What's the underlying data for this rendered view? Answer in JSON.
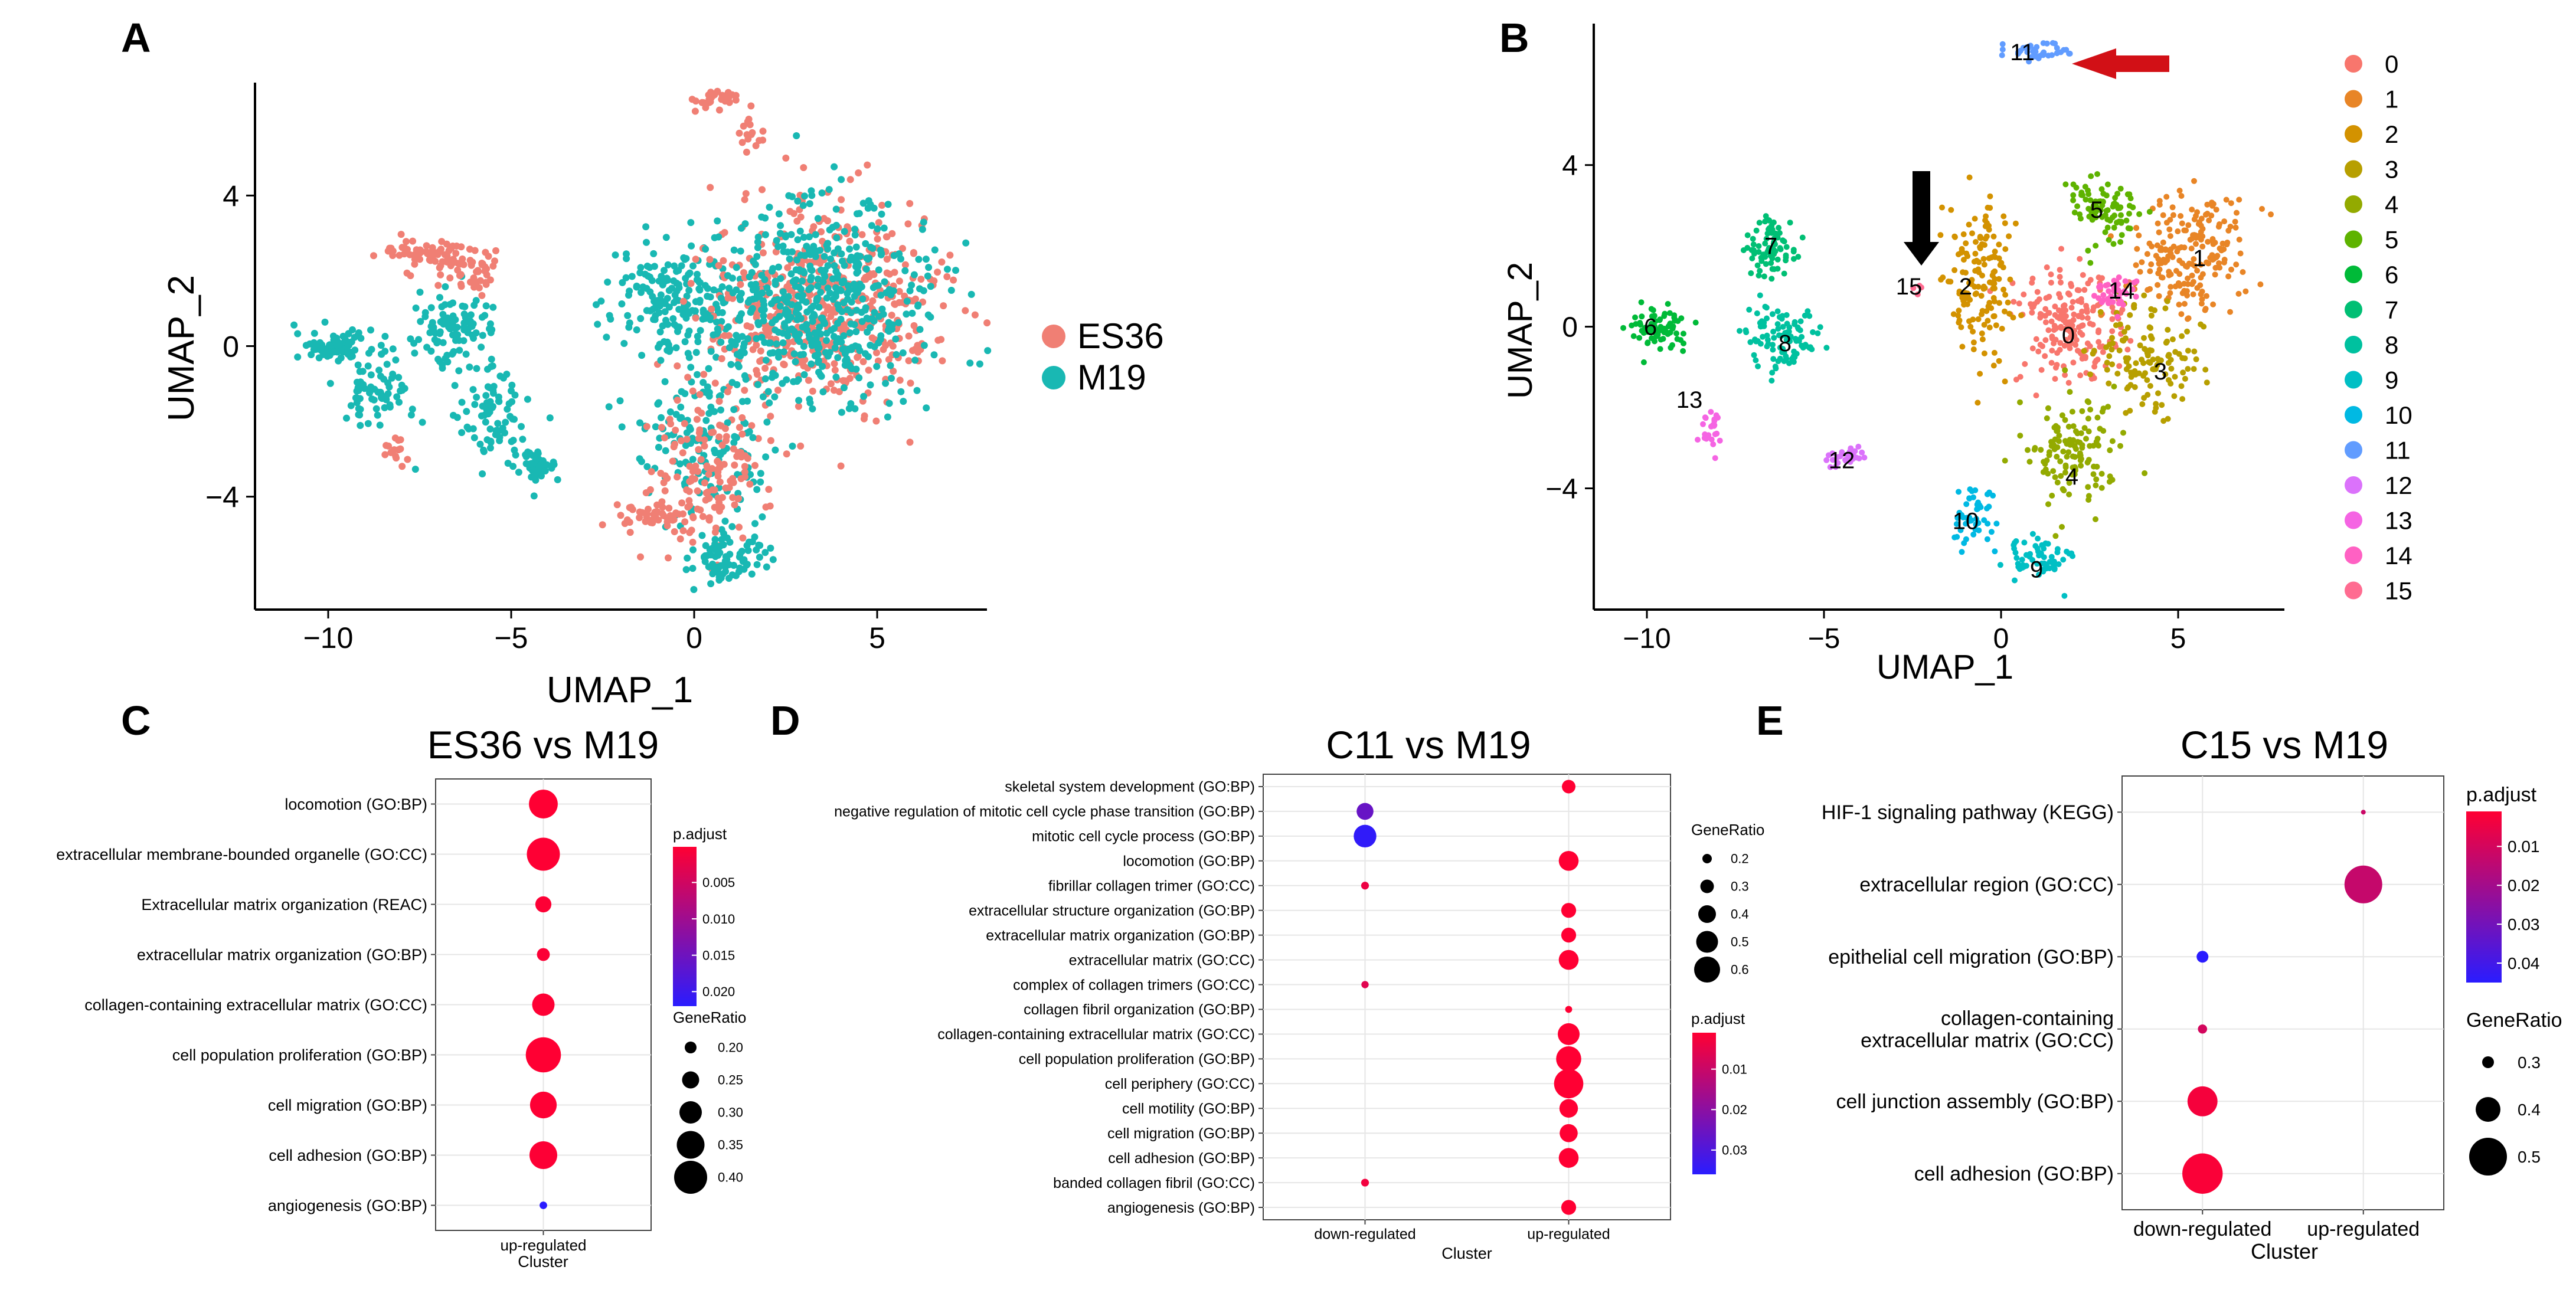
{
  "figure": {
    "panel_letters": [
      "A",
      "B",
      "C",
      "D",
      "E"
    ]
  },
  "colors": {
    "es36": "#f07f74",
    "m19": "#19b8b3",
    "sig_low": "#ff0033",
    "sig_high": "#2a1cff",
    "axis": "#000000",
    "grid": "#e6e6e6",
    "arrow_red": "#d21016",
    "arrow_black": "#000000"
  },
  "chart_data": [
    {
      "id": "A",
      "type": "scatter",
      "title": "",
      "xlabel": "UMAP_1",
      "ylabel": "UMAP_2",
      "xlim": [
        -12,
        8
      ],
      "ylim": [
        -7,
        7
      ],
      "xticks": [
        -10,
        -5,
        0,
        5
      ],
      "yticks": [
        -4,
        0,
        4
      ],
      "xtick_labels": [
        "−10",
        "−5",
        "0",
        "5"
      ],
      "ytick_labels": [
        "−4",
        "0",
        "4"
      ],
      "legend": [
        {
          "label": "ES36",
          "color": "#f07f74"
        },
        {
          "label": "M19",
          "color": "#19b8b3"
        }
      ],
      "regions": [
        {
          "group": "M19",
          "cx": -9.8,
          "cy": 0.0,
          "rx": 1.0,
          "ry": 0.35,
          "n": 90
        },
        {
          "group": "M19",
          "cx": -8.7,
          "cy": -1.2,
          "rx": 1.0,
          "ry": 1.0,
          "n": 70
        },
        {
          "group": "M19",
          "cx": -6.5,
          "cy": 0.5,
          "rx": 1.0,
          "ry": 0.8,
          "n": 100
        },
        {
          "group": "M19",
          "cx": -5.5,
          "cy": -1.8,
          "rx": 0.9,
          "ry": 1.1,
          "n": 80
        },
        {
          "group": "M19",
          "cx": -4.3,
          "cy": -3.2,
          "rx": 0.6,
          "ry": 0.35,
          "n": 50
        },
        {
          "group": "ES36",
          "cx": -7.0,
          "cy": 2.4,
          "rx": 1.4,
          "ry": 0.45,
          "n": 80
        },
        {
          "group": "ES36",
          "cx": -6.0,
          "cy": 1.8,
          "rx": 0.5,
          "ry": 0.5,
          "n": 30
        },
        {
          "group": "ES36",
          "cx": -8.2,
          "cy": -2.8,
          "rx": 0.3,
          "ry": 0.5,
          "n": 15
        },
        {
          "group": "ES36",
          "cx": 0.6,
          "cy": 6.6,
          "rx": 0.8,
          "ry": 0.25,
          "n": 35
        },
        {
          "group": "ES36",
          "cx": 1.5,
          "cy": 5.7,
          "rx": 0.3,
          "ry": 0.5,
          "n": 15
        },
        {
          "group": "M19",
          "cx": -0.5,
          "cy": 1.3,
          "rx": 1.6,
          "ry": 1.2,
          "n": 180
        },
        {
          "group": "ES36",
          "cx": 3.5,
          "cy": 1.0,
          "rx": 2.8,
          "ry": 2.4,
          "n": 500
        },
        {
          "group": "M19",
          "cx": 3.5,
          "cy": 1.2,
          "rx": 2.8,
          "ry": 2.4,
          "n": 520
        },
        {
          "group": "M19",
          "cx": 0.3,
          "cy": -2.5,
          "rx": 1.5,
          "ry": 2.0,
          "n": 160
        },
        {
          "group": "ES36",
          "cx": 0.3,
          "cy": -3.5,
          "rx": 1.4,
          "ry": 2.0,
          "n": 150
        },
        {
          "group": "M19",
          "cx": 0.8,
          "cy": -5.6,
          "rx": 1.0,
          "ry": 0.6,
          "n": 80
        },
        {
          "group": "ES36",
          "cx": -1.3,
          "cy": -4.5,
          "rx": 0.8,
          "ry": 0.4,
          "n": 40
        }
      ]
    },
    {
      "id": "B",
      "type": "scatter",
      "title": "",
      "xlabel": "UMAP_1",
      "ylabel": "UMAP_2",
      "xlim": [
        -11.5,
        8
      ],
      "ylim": [
        -7,
        7.5
      ],
      "xticks": [
        -10,
        -5,
        0,
        5
      ],
      "yticks": [
        -4,
        0,
        4
      ],
      "xtick_labels": [
        "−10",
        "−5",
        "0",
        "5"
      ],
      "ytick_labels": [
        "−4",
        "0",
        "4"
      ],
      "legend": [
        {
          "label": "0",
          "color": "#f8766d"
        },
        {
          "label": "1",
          "color": "#e88526"
        },
        {
          "label": "2",
          "color": "#d39200"
        },
        {
          "label": "3",
          "color": "#b79f00"
        },
        {
          "label": "4",
          "color": "#93aa00"
        },
        {
          "label": "5",
          "color": "#5eb300"
        },
        {
          "label": "6",
          "color": "#00ba38"
        },
        {
          "label": "7",
          "color": "#00bf74"
        },
        {
          "label": "8",
          "color": "#00c19f"
        },
        {
          "label": "9",
          "color": "#00bfc4"
        },
        {
          "label": "10",
          "color": "#00b9e3"
        },
        {
          "label": "11",
          "color": "#619cff"
        },
        {
          "label": "12",
          "color": "#db72fb"
        },
        {
          "label": "13",
          "color": "#f564e3"
        },
        {
          "label": "14",
          "color": "#ff61c3"
        },
        {
          "label": "15",
          "color": "#ff6c91"
        }
      ],
      "clusters": [
        {
          "label": "0",
          "color": "#f8766d",
          "cx": 1.9,
          "cy": 0.0,
          "rx": 1.5,
          "ry": 1.5,
          "n": 200
        },
        {
          "label": "1",
          "color": "#e88526",
          "cx": 5.2,
          "cy": 1.8,
          "rx": 1.6,
          "ry": 1.6,
          "n": 200
        },
        {
          "label": "2",
          "color": "#d39200",
          "cx": -0.6,
          "cy": 1.0,
          "rx": 1.0,
          "ry": 1.9,
          "n": 150
        },
        {
          "label": "3",
          "color": "#b79f00",
          "cx": 4.2,
          "cy": -0.8,
          "rx": 1.3,
          "ry": 1.4,
          "n": 130
        },
        {
          "label": "4",
          "color": "#93aa00",
          "cx": 2.0,
          "cy": -3.0,
          "rx": 1.2,
          "ry": 1.3,
          "n": 130
        },
        {
          "label": "5",
          "color": "#5eb300",
          "cx": 2.9,
          "cy": 2.9,
          "rx": 0.9,
          "ry": 0.8,
          "n": 90
        },
        {
          "label": "6",
          "color": "#00ba38",
          "cx": -9.7,
          "cy": 0.0,
          "rx": 0.9,
          "ry": 0.5,
          "n": 80
        },
        {
          "label": "7",
          "color": "#00bf74",
          "cx": -6.5,
          "cy": 2.0,
          "rx": 0.8,
          "ry": 0.8,
          "n": 80
        },
        {
          "label": "8",
          "color": "#00c19f",
          "cx": -6.2,
          "cy": -0.3,
          "rx": 1.1,
          "ry": 0.9,
          "n": 100
        },
        {
          "label": "9",
          "color": "#00bfc4",
          "cx": 1.0,
          "cy": -5.7,
          "rx": 0.9,
          "ry": 0.5,
          "n": 60
        },
        {
          "label": "10",
          "color": "#00b9e3",
          "cx": -0.8,
          "cy": -4.7,
          "rx": 0.6,
          "ry": 0.7,
          "n": 50
        },
        {
          "label": "11",
          "color": "#619cff",
          "cx": 1.0,
          "cy": 6.8,
          "rx": 0.9,
          "ry": 0.2,
          "n": 40
        },
        {
          "label": "12",
          "color": "#db72fb",
          "cx": -4.4,
          "cy": -3.2,
          "rx": 0.5,
          "ry": 0.3,
          "n": 30
        },
        {
          "label": "13",
          "color": "#f564e3",
          "cx": -8.2,
          "cy": -2.5,
          "rx": 0.3,
          "ry": 0.6,
          "n": 25
        },
        {
          "label": "14",
          "color": "#ff61c3",
          "cx": 3.2,
          "cy": 0.9,
          "rx": 0.6,
          "ry": 0.5,
          "n": 40
        },
        {
          "label": "15",
          "color": "#ff6c91",
          "cx": -2.3,
          "cy": 1.0,
          "rx": 0.15,
          "ry": 0.15,
          "n": 4
        }
      ],
      "cluster_labels": [
        {
          "text": "0",
          "x": 1.9,
          "y": -0.2
        },
        {
          "text": "1",
          "x": 5.6,
          "y": 1.7
        },
        {
          "text": "2",
          "x": -1.0,
          "y": 1.0
        },
        {
          "text": "3",
          "x": 4.5,
          "y": -1.1
        },
        {
          "text": "4",
          "x": 2.0,
          "y": -3.7
        },
        {
          "text": "5",
          "x": 2.7,
          "y": 2.9
        },
        {
          "text": "6",
          "x": -9.9,
          "y": 0.0
        },
        {
          "text": "7",
          "x": -6.5,
          "y": 2.0
        },
        {
          "text": "8",
          "x": -6.1,
          "y": -0.4
        },
        {
          "text": "9",
          "x": 1.0,
          "y": -6.0
        },
        {
          "text": "10",
          "x": -1.0,
          "y": -4.8
        },
        {
          "text": "11",
          "x": 0.6,
          "y": 6.8
        },
        {
          "text": "12",
          "x": -4.5,
          "y": -3.3
        },
        {
          "text": "13",
          "x": -8.8,
          "y": -1.8
        },
        {
          "text": "14",
          "x": 3.4,
          "y": 0.9
        },
        {
          "text": "15",
          "x": -2.6,
          "y": 1.0
        }
      ],
      "annotations": [
        {
          "type": "red-arrow",
          "points_to_cluster": "11"
        },
        {
          "type": "black-arrow",
          "points_to_cluster": "15"
        }
      ]
    },
    {
      "id": "C",
      "type": "scatter",
      "title": "ES36 vs M19",
      "xlabel": "Cluster",
      "categories": [
        "up-regulated"
      ],
      "terms": [
        "angiogenesis (GO:BP)",
        "cell adhesion (GO:BP)",
        "cell migration (GO:BP)",
        "cell population proliferation (GO:BP)",
        "collagen-containing extracellular matrix (GO:CC)",
        "extracellular matrix organization (GO:BP)",
        "Extracellular matrix organization (REAC)",
        "extracellular membrane-bounded organelle (GO:CC)",
        "locomotion (GO:BP)"
      ],
      "points": [
        {
          "term": "locomotion (GO:BP)",
          "cluster": "up-regulated",
          "gene_ratio": 0.36,
          "p_adjust": 0.0001
        },
        {
          "term": "extracellular membrane-bounded organelle (GO:CC)",
          "cluster": "up-regulated",
          "gene_ratio": 0.4,
          "p_adjust": 0.0002
        },
        {
          "term": "Extracellular matrix organization (REAC)",
          "cluster": "up-regulated",
          "gene_ratio": 0.24,
          "p_adjust": 0.0003
        },
        {
          "term": "extracellular matrix organization (GO:BP)",
          "cluster": "up-regulated",
          "gene_ratio": 0.21,
          "p_adjust": 0.0004
        },
        {
          "term": "collagen-containing extracellular matrix (GO:CC)",
          "cluster": "up-regulated",
          "gene_ratio": 0.3,
          "p_adjust": 0.0002
        },
        {
          "term": "cell population proliferation (GO:BP)",
          "cluster": "up-regulated",
          "gene_ratio": 0.42,
          "p_adjust": 0.0001
        },
        {
          "term": "cell migration (GO:BP)",
          "cluster": "up-regulated",
          "gene_ratio": 0.34,
          "p_adjust": 0.0002
        },
        {
          "term": "cell adhesion (GO:BP)",
          "cluster": "up-regulated",
          "gene_ratio": 0.35,
          "p_adjust": 0.0003
        },
        {
          "term": "angiogenesis (GO:BP)",
          "cluster": "up-regulated",
          "gene_ratio": 0.16,
          "p_adjust": 0.022
        }
      ],
      "color_legend": {
        "title": "p.adjust",
        "range": [
          0.0001,
          0.022
        ],
        "ticks": [
          0.005,
          0.01,
          0.015,
          0.02
        ],
        "tick_labels": [
          "0.005",
          "0.010",
          "0.015",
          "0.020"
        ]
      },
      "size_legend": {
        "title": "GeneRatio",
        "values": [
          0.2,
          0.25,
          0.3,
          0.35,
          0.4
        ],
        "labels": [
          "0.20",
          "0.25",
          "0.30",
          "0.35",
          "0.40"
        ]
      }
    },
    {
      "id": "D",
      "type": "scatter",
      "title": "C11 vs M19",
      "xlabel": "Cluster",
      "categories": [
        "down-regulated",
        "up-regulated"
      ],
      "terms": [
        "angiogenesis (GO:BP)",
        "banded collagen fibril (GO:CC)",
        "cell adhesion (GO:BP)",
        "cell migration (GO:BP)",
        "cell motility (GO:BP)",
        "cell periphery (GO:CC)",
        "cell population proliferation (GO:BP)",
        "collagen-containing extracellular matrix (GO:CC)",
        "collagen fibril organization (GO:BP)",
        "complex of collagen trimers (GO:CC)",
        "extracellular matrix (GO:CC)",
        "extracellular matrix organization (GO:BP)",
        "extracellular structure organization (GO:BP)",
        "fibrillar collagen trimer (GO:CC)",
        "locomotion (GO:BP)",
        "mitotic cell cycle process (GO:BP)",
        "negative regulation of mitotic cell cycle phase transition (GO:BP)",
        "skeletal system development (GO:BP)"
      ],
      "points": [
        {
          "term": "skeletal system development (GO:BP)",
          "cluster": "up-regulated",
          "gene_ratio": 0.3,
          "p_adjust": 0.001
        },
        {
          "term": "negative regulation of mitotic cell cycle phase transition (GO:BP)",
          "cluster": "down-regulated",
          "gene_ratio": 0.38,
          "p_adjust": 0.026
        },
        {
          "term": "mitotic cell cycle process (GO:BP)",
          "cluster": "down-regulated",
          "gene_ratio": 0.52,
          "p_adjust": 0.035
        },
        {
          "term": "locomotion (GO:BP)",
          "cluster": "up-regulated",
          "gene_ratio": 0.45,
          "p_adjust": 0.001
        },
        {
          "term": "fibrillar collagen trimer (GO:CC)",
          "cluster": "down-regulated",
          "gene_ratio": 0.16,
          "p_adjust": 0.004
        },
        {
          "term": "extracellular structure organization (GO:BP)",
          "cluster": "up-regulated",
          "gene_ratio": 0.33,
          "p_adjust": 0.001
        },
        {
          "term": "extracellular matrix organization (GO:BP)",
          "cluster": "up-regulated",
          "gene_ratio": 0.33,
          "p_adjust": 0.001
        },
        {
          "term": "extracellular matrix (GO:CC)",
          "cluster": "up-regulated",
          "gene_ratio": 0.45,
          "p_adjust": 0.001
        },
        {
          "term": "complex of collagen trimers (GO:CC)",
          "cluster": "down-regulated",
          "gene_ratio": 0.15,
          "p_adjust": 0.006
        },
        {
          "term": "collagen fibril organization (GO:BP)",
          "cluster": "up-regulated",
          "gene_ratio": 0.14,
          "p_adjust": 0.001
        },
        {
          "term": "collagen-containing extracellular matrix (GO:CC)",
          "cluster": "up-regulated",
          "gene_ratio": 0.5,
          "p_adjust": 0.001
        },
        {
          "term": "cell population proliferation (GO:BP)",
          "cluster": "up-regulated",
          "gene_ratio": 0.58,
          "p_adjust": 0.001
        },
        {
          "term": "cell periphery (GO:CC)",
          "cluster": "up-regulated",
          "gene_ratio": 0.68,
          "p_adjust": 0.001
        },
        {
          "term": "cell motility (GO:BP)",
          "cluster": "up-regulated",
          "gene_ratio": 0.42,
          "p_adjust": 0.001
        },
        {
          "term": "cell migration (GO:BP)",
          "cluster": "up-regulated",
          "gene_ratio": 0.41,
          "p_adjust": 0.001
        },
        {
          "term": "cell adhesion (GO:BP)",
          "cluster": "up-regulated",
          "gene_ratio": 0.45,
          "p_adjust": 0.001
        },
        {
          "term": "banded collagen fibril (GO:CC)",
          "cluster": "down-regulated",
          "gene_ratio": 0.16,
          "p_adjust": 0.003
        },
        {
          "term": "angiogenesis (GO:BP)",
          "cluster": "up-regulated",
          "gene_ratio": 0.33,
          "p_adjust": 0.001
        }
      ],
      "color_legend": {
        "title": "p.adjust",
        "range": [
          0.001,
          0.036
        ],
        "ticks": [
          0.01,
          0.02,
          0.03
        ],
        "tick_labels": [
          "0.01",
          "0.02",
          "0.03"
        ]
      },
      "size_legend": {
        "title": "GeneRatio",
        "values": [
          0.2,
          0.3,
          0.4,
          0.5,
          0.6
        ],
        "labels": [
          "0.2",
          "0.3",
          "0.4",
          "0.5",
          "0.6"
        ]
      }
    },
    {
      "id": "E",
      "type": "scatter",
      "title": "C15 vs M19",
      "xlabel": "Cluster",
      "categories": [
        "down-regulated",
        "up-regulated"
      ],
      "terms": [
        "cell adhesion (GO:BP)",
        "cell junction assembly (GO:BP)",
        "collagen-containing extracellular matrix (GO:CC)",
        "epithelial cell migration (GO:BP)",
        "extracellular region (GO:CC)",
        "HIF-1 signaling pathway (KEGG)"
      ],
      "term_display": {
        "collagen-containing extracellular matrix (GO:CC)": [
          "collagen-containing",
          "extracellular matrix (GO:CC)"
        ]
      },
      "points": [
        {
          "term": "HIF-1 signaling pathway (KEGG)",
          "cluster": "up-regulated",
          "gene_ratio": 0.2,
          "p_adjust": 0.012
        },
        {
          "term": "extracellular region (GO:CC)",
          "cluster": "up-regulated",
          "gene_ratio": 0.5,
          "p_adjust": 0.013
        },
        {
          "term": "epithelial cell migration (GO:BP)",
          "cluster": "down-regulated",
          "gene_ratio": 0.3,
          "p_adjust": 0.045
        },
        {
          "term": "collagen-containing extracellular matrix (GO:CC)",
          "cluster": "down-regulated",
          "gene_ratio": 0.28,
          "p_adjust": 0.01
        },
        {
          "term": "cell junction assembly (GO:BP)",
          "cluster": "down-regulated",
          "gene_ratio": 0.44,
          "p_adjust": 0.003
        },
        {
          "term": "cell adhesion (GO:BP)",
          "cluster": "down-regulated",
          "gene_ratio": 0.52,
          "p_adjust": 0.002
        }
      ],
      "color_legend": {
        "title": "p.adjust",
        "range": [
          0.001,
          0.045
        ],
        "ticks": [
          0.01,
          0.02,
          0.03,
          0.04
        ],
        "tick_labels": [
          "0.01",
          "0.02",
          "0.03",
          "0.04"
        ]
      },
      "size_legend": {
        "title": "GeneRatio",
        "values": [
          0.3,
          0.4,
          0.5
        ],
        "labels": [
          "0.3",
          "0.4",
          "0.5"
        ]
      }
    }
  ]
}
